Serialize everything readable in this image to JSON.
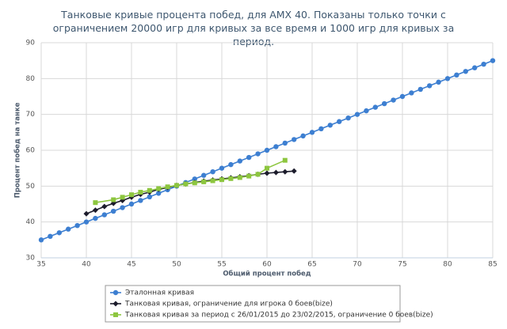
{
  "chart_data": {
    "type": "line",
    "title": "Танковые кривые процента побед, для AMX 40. Показаны только точки с ограничением 20000 игр для кривых за все время и 1000 игр для кривых за период.",
    "xlabel": "Общий процент побед",
    "ylabel": "Процент побед на танке",
    "xlim": [
      35,
      85
    ],
    "xticks": [
      35,
      40,
      45,
      50,
      55,
      60,
      65,
      70,
      75,
      80,
      85
    ],
    "ylim": [
      30,
      90
    ],
    "yticks": [
      30,
      40,
      50,
      60,
      70,
      80,
      90
    ],
    "grid": true,
    "series": [
      {
        "name": "Эталонная кривая",
        "color": "#3d7fd1",
        "marker": "circle",
        "x": [
          35,
          36,
          37,
          38,
          39,
          40,
          41,
          42,
          43,
          44,
          45,
          46,
          47,
          48,
          49,
          50,
          51,
          52,
          53,
          54,
          55,
          56,
          57,
          58,
          59,
          60,
          61,
          62,
          63,
          64,
          65,
          66,
          67,
          68,
          69,
          70,
          71,
          72,
          73,
          74,
          75,
          76,
          77,
          78,
          79,
          80,
          81,
          82,
          83,
          84,
          85
        ],
        "values": [
          35,
          36,
          37,
          38,
          39,
          40,
          41,
          42,
          43,
          44,
          45,
          46,
          47,
          48,
          49,
          50,
          51,
          52,
          53,
          54,
          55,
          56,
          57,
          58,
          59,
          60,
          61,
          62,
          63,
          64,
          65,
          66,
          67,
          68,
          69,
          70,
          71,
          72,
          73,
          74,
          75,
          76,
          77,
          78,
          79,
          80,
          81,
          82,
          83,
          84,
          85
        ]
      },
      {
        "name": "Танковая кривая, ограничение для игрока 0 боев(bize)",
        "color": "#1c1c2c",
        "marker": "diamond",
        "x": [
          40,
          41,
          42,
          43,
          44,
          45,
          46,
          47,
          48,
          49,
          50,
          51,
          52,
          53,
          54,
          55,
          56,
          57,
          58,
          59,
          60,
          61,
          62,
          63
        ],
        "values": [
          42.3,
          43.3,
          44.3,
          45.2,
          46.0,
          46.9,
          47.7,
          48.3,
          49.1,
          49.6,
          50.2,
          50.6,
          51.0,
          51.4,
          51.7,
          52.0,
          52.3,
          52.6,
          52.9,
          53.3,
          53.6,
          53.8,
          54.0,
          54.2
        ]
      },
      {
        "name": "Танковая кривая за период с 26/01/2015 до 23/02/2015, ограничение 0 боев(bize)",
        "color": "#8dc63f",
        "marker": "square",
        "x": [
          41,
          43,
          44,
          45,
          46,
          47,
          48,
          49,
          50,
          51,
          52,
          53,
          54,
          55,
          56,
          57,
          58,
          59,
          60,
          62
        ],
        "values": [
          45.4,
          46.2,
          46.9,
          47.6,
          48.3,
          48.8,
          49.3,
          49.8,
          50.2,
          50.6,
          50.9,
          51.2,
          51.5,
          51.8,
          52.1,
          52.4,
          52.8,
          53.3,
          55.0,
          57.2
        ]
      }
    ]
  }
}
